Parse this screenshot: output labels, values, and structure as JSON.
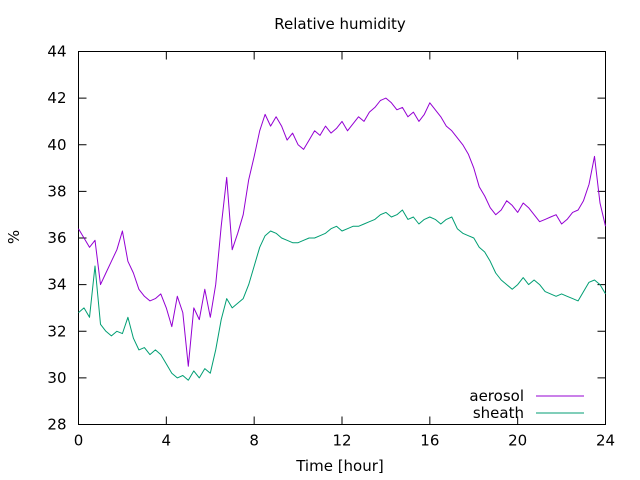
{
  "chart_data": {
    "type": "line",
    "title": "Relative humidity",
    "xlabel": "Time [hour]",
    "ylabel": "%",
    "xlim": [
      0,
      24
    ],
    "ylim": [
      28,
      44
    ],
    "xticks": [
      0,
      4,
      8,
      12,
      16,
      20,
      24
    ],
    "yticks": [
      28,
      30,
      32,
      34,
      36,
      38,
      40,
      42,
      44
    ],
    "grid": false,
    "legend_position": "bottom-right",
    "series": [
      {
        "name": "aerosol",
        "color": "#9400d3",
        "x": [
          0.0,
          0.25,
          0.5,
          0.75,
          1.0,
          1.25,
          1.5,
          1.75,
          2.0,
          2.25,
          2.5,
          2.75,
          3.0,
          3.25,
          3.5,
          3.75,
          4.0,
          4.25,
          4.5,
          4.75,
          5.0,
          5.25,
          5.5,
          5.75,
          6.0,
          6.25,
          6.5,
          6.75,
          7.0,
          7.25,
          7.5,
          7.75,
          8.0,
          8.25,
          8.5,
          8.75,
          9.0,
          9.25,
          9.5,
          9.75,
          10.0,
          10.25,
          10.5,
          10.75,
          11.0,
          11.25,
          11.5,
          11.75,
          12.0,
          12.25,
          12.5,
          12.75,
          13.0,
          13.25,
          13.5,
          13.75,
          14.0,
          14.25,
          14.5,
          14.75,
          15.0,
          15.25,
          15.5,
          15.75,
          16.0,
          16.25,
          16.5,
          16.75,
          17.0,
          17.25,
          17.5,
          17.75,
          18.0,
          18.25,
          18.5,
          18.75,
          19.0,
          19.25,
          19.5,
          19.75,
          20.0,
          20.25,
          20.5,
          20.75,
          21.0,
          21.25,
          21.5,
          21.75,
          22.0,
          22.25,
          22.5,
          22.75,
          23.0,
          23.25,
          23.5,
          23.75,
          24.0
        ],
        "y": [
          36.4,
          36.0,
          35.6,
          35.9,
          34.0,
          34.5,
          35.0,
          35.5,
          36.3,
          35.0,
          34.5,
          33.8,
          33.5,
          33.3,
          33.4,
          33.6,
          33.0,
          32.2,
          33.5,
          32.8,
          30.5,
          33.0,
          32.5,
          33.8,
          32.6,
          34.0,
          36.5,
          38.6,
          35.5,
          36.2,
          37.0,
          38.5,
          39.5,
          40.6,
          41.3,
          40.8,
          41.2,
          40.8,
          40.2,
          40.5,
          40.0,
          39.8,
          40.2,
          40.6,
          40.4,
          40.8,
          40.5,
          40.7,
          41.0,
          40.6,
          40.9,
          41.2,
          41.0,
          41.4,
          41.6,
          41.9,
          42.0,
          41.8,
          41.5,
          41.6,
          41.2,
          41.4,
          41.0,
          41.3,
          41.8,
          41.5,
          41.2,
          40.8,
          40.6,
          40.3,
          40.0,
          39.6,
          39.0,
          38.2,
          37.8,
          37.3,
          37.0,
          37.2,
          37.6,
          37.4,
          37.1,
          37.5,
          37.3,
          37.0,
          36.7,
          36.8,
          36.9,
          37.0,
          36.6,
          36.8,
          37.1,
          37.2,
          37.6,
          38.3,
          39.5,
          37.5,
          36.5
        ]
      },
      {
        "name": "sheath",
        "color": "#009e73",
        "x": [
          0.0,
          0.25,
          0.5,
          0.75,
          1.0,
          1.25,
          1.5,
          1.75,
          2.0,
          2.25,
          2.5,
          2.75,
          3.0,
          3.25,
          3.5,
          3.75,
          4.0,
          4.25,
          4.5,
          4.75,
          5.0,
          5.25,
          5.5,
          5.75,
          6.0,
          6.25,
          6.5,
          6.75,
          7.0,
          7.25,
          7.5,
          7.75,
          8.0,
          8.25,
          8.5,
          8.75,
          9.0,
          9.25,
          9.5,
          9.75,
          10.0,
          10.25,
          10.5,
          10.75,
          11.0,
          11.25,
          11.5,
          11.75,
          12.0,
          12.25,
          12.5,
          12.75,
          13.0,
          13.25,
          13.5,
          13.75,
          14.0,
          14.25,
          14.5,
          14.75,
          15.0,
          15.25,
          15.5,
          15.75,
          16.0,
          16.25,
          16.5,
          16.75,
          17.0,
          17.25,
          17.5,
          17.75,
          18.0,
          18.25,
          18.5,
          18.75,
          19.0,
          19.25,
          19.5,
          19.75,
          20.0,
          20.25,
          20.5,
          20.75,
          21.0,
          21.25,
          21.5,
          21.75,
          22.0,
          22.25,
          22.5,
          22.75,
          23.0,
          23.25,
          23.5,
          23.75,
          24.0
        ],
        "y": [
          32.8,
          33.0,
          32.6,
          34.8,
          32.3,
          32.0,
          31.8,
          32.0,
          31.9,
          32.6,
          31.7,
          31.2,
          31.3,
          31.0,
          31.2,
          31.0,
          30.6,
          30.2,
          30.0,
          30.1,
          29.9,
          30.3,
          30.0,
          30.4,
          30.2,
          31.2,
          32.5,
          33.4,
          33.0,
          33.2,
          33.4,
          34.0,
          34.8,
          35.6,
          36.1,
          36.3,
          36.2,
          36.0,
          35.9,
          35.8,
          35.8,
          35.9,
          36.0,
          36.0,
          36.1,
          36.2,
          36.4,
          36.5,
          36.3,
          36.4,
          36.5,
          36.5,
          36.6,
          36.7,
          36.8,
          37.0,
          37.1,
          36.9,
          37.0,
          37.2,
          36.8,
          36.9,
          36.6,
          36.8,
          36.9,
          36.8,
          36.6,
          36.8,
          36.9,
          36.4,
          36.2,
          36.1,
          36.0,
          35.6,
          35.4,
          35.0,
          34.5,
          34.2,
          34.0,
          33.8,
          34.0,
          34.3,
          34.0,
          34.2,
          34.0,
          33.7,
          33.6,
          33.5,
          33.6,
          33.5,
          33.4,
          33.3,
          33.7,
          34.1,
          34.2,
          34.0,
          33.6
        ]
      }
    ]
  }
}
